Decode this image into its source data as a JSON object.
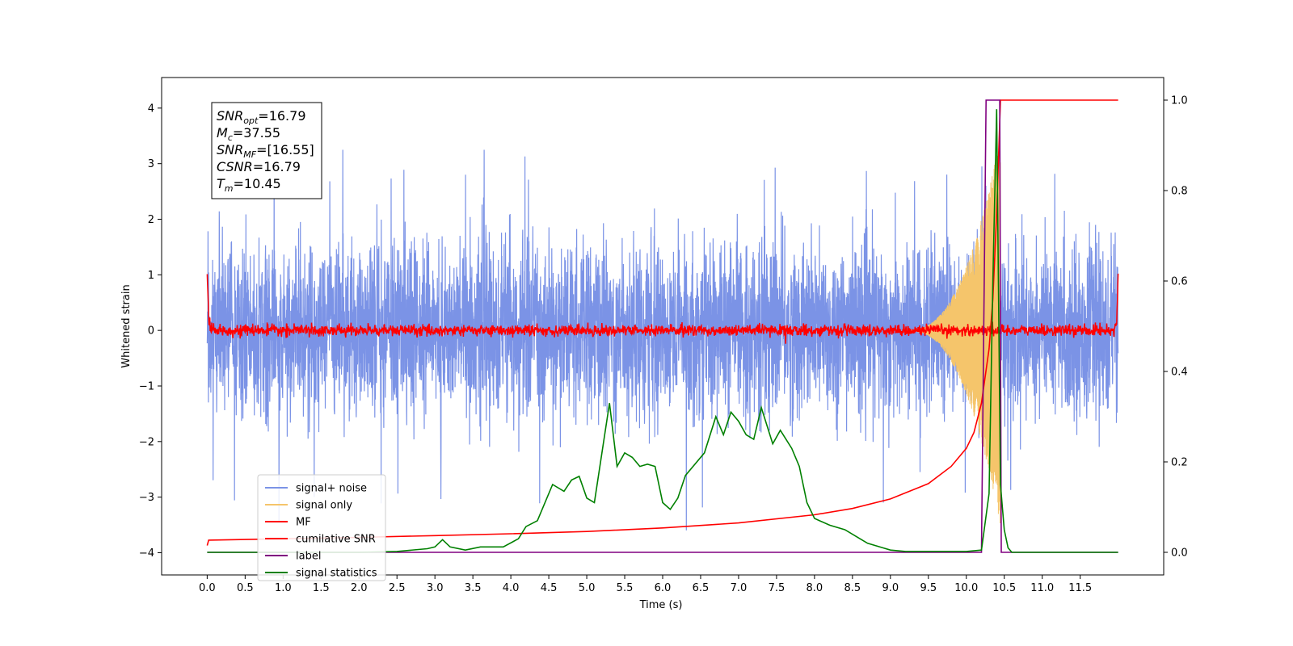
{
  "chart_data": {
    "type": "line",
    "xlabel": "Time (s)",
    "ylabel": "Whitened strain",
    "xlim": [
      -0.6,
      12.6
    ],
    "ylim": [
      -4.4,
      4.55
    ],
    "y2lim": [
      -0.05,
      1.05
    ],
    "x_ticks": [
      "0.0",
      "0.5",
      "1.0",
      "1.5",
      "2.0",
      "2.5",
      "3.0",
      "3.5",
      "4.0",
      "4.5",
      "5.0",
      "5.5",
      "6.0",
      "6.5",
      "7.0",
      "7.5",
      "8.0",
      "8.5",
      "9.0",
      "9.5",
      "10.0",
      "10.5",
      "11.0",
      "11.5"
    ],
    "y_ticks": [
      "−4",
      "−3",
      "−2",
      "−1",
      "0",
      "1",
      "2",
      "3",
      "4"
    ],
    "y2_ticks": [
      "0.0",
      "0.2",
      "0.4",
      "0.6",
      "0.8",
      "1.0"
    ],
    "annotation": {
      "lines": [
        {
          "base": "SNR",
          "sub": "opt",
          "rest": "=16.79"
        },
        {
          "base": "M",
          "sub": "c",
          "rest": "=37.55"
        },
        {
          "base": "SNR",
          "sub": "MF",
          "rest": "=[16.55]"
        },
        {
          "base": "CSNR",
          "sub": "",
          "rest": "=16.79"
        },
        {
          "base": "T",
          "sub": "m",
          "rest": "=10.45"
        }
      ]
    },
    "legend": {
      "position": "lower-left",
      "entries": [
        {
          "label": "signal+ noise",
          "color": "#7b93e6"
        },
        {
          "label": "signal only",
          "color": "#f5c56b"
        },
        {
          "label": "MF",
          "color": "#ff0000"
        },
        {
          "label": "cumilative SNR",
          "color": "#ff0000"
        },
        {
          "label": "label",
          "color": "#800080"
        },
        {
          "label": "signal statistics",
          "color": "#008000"
        }
      ]
    },
    "series": [
      {
        "name": "signal+ noise",
        "axis": "left",
        "kind": "noise",
        "x_range": [
          0.0,
          12.0
        ],
        "std": 0.75,
        "min": -4.0,
        "max": 3.25,
        "color": "#7b93e6"
      },
      {
        "name": "signal only",
        "axis": "left",
        "kind": "chirp",
        "x_range": [
          9.2,
          10.45
        ],
        "peak_amplitude": 3.5,
        "color": "#f5c56b"
      },
      {
        "name": "MF",
        "axis": "left",
        "kind": "mf",
        "x": [
          0.0,
          0.02,
          0.05,
          11.95,
          11.98,
          12.0
        ],
        "y": [
          1.0,
          0.2,
          0.0,
          0.0,
          0.2,
          1.0
        ],
        "noise_std": 0.05,
        "color": "#ff0000"
      },
      {
        "name": "cumilative SNR",
        "axis": "right",
        "x": [
          0.0,
          0.02,
          1.0,
          2.0,
          3.0,
          4.0,
          5.0,
          6.0,
          7.0,
          8.0,
          8.5,
          9.0,
          9.5,
          9.8,
          10.0,
          10.1,
          10.2,
          10.3,
          10.35,
          10.4,
          10.45,
          12.0
        ],
        "y": [
          0.015,
          0.027,
          0.03,
          0.033,
          0.037,
          0.041,
          0.046,
          0.054,
          0.065,
          0.083,
          0.097,
          0.118,
          0.152,
          0.19,
          0.23,
          0.265,
          0.33,
          0.45,
          0.56,
          0.75,
          1.0,
          1.0
        ],
        "color": "#ff0000"
      },
      {
        "name": "label",
        "axis": "right",
        "x": [
          0.0,
          10.2,
          10.26,
          10.44,
          10.46,
          12.0
        ],
        "y": [
          0.0,
          0.0,
          1.0,
          1.0,
          0.0,
          0.0
        ],
        "color": "#800080"
      },
      {
        "name": "signal statistics",
        "axis": "right",
        "x": [
          0.0,
          1.0,
          2.0,
          2.5,
          2.9,
          3.0,
          3.1,
          3.2,
          3.4,
          3.6,
          3.9,
          4.1,
          4.2,
          4.35,
          4.55,
          4.7,
          4.8,
          4.9,
          5.0,
          5.1,
          5.3,
          5.4,
          5.5,
          5.6,
          5.7,
          5.8,
          5.9,
          6.0,
          6.1,
          6.2,
          6.3,
          6.4,
          6.55,
          6.7,
          6.8,
          6.9,
          7.0,
          7.1,
          7.2,
          7.3,
          7.45,
          7.55,
          7.7,
          7.8,
          7.9,
          8.0,
          8.2,
          8.4,
          8.6,
          8.7,
          8.9,
          9.0,
          9.2,
          10.0,
          10.2,
          10.3,
          10.35,
          10.4,
          10.45,
          10.5,
          10.55,
          10.6,
          11.0,
          11.5,
          12.0
        ],
        "y": [
          0.0,
          0.0,
          0.0,
          0.002,
          0.008,
          0.012,
          0.028,
          0.012,
          0.005,
          0.012,
          0.012,
          0.03,
          0.057,
          0.07,
          0.15,
          0.135,
          0.16,
          0.168,
          0.12,
          0.11,
          0.33,
          0.19,
          0.22,
          0.21,
          0.19,
          0.195,
          0.19,
          0.11,
          0.095,
          0.12,
          0.17,
          0.19,
          0.22,
          0.3,
          0.26,
          0.31,
          0.29,
          0.26,
          0.25,
          0.32,
          0.24,
          0.27,
          0.23,
          0.19,
          0.11,
          0.075,
          0.06,
          0.05,
          0.03,
          0.02,
          0.01,
          0.005,
          0.002,
          0.002,
          0.005,
          0.13,
          0.6,
          0.98,
          0.15,
          0.05,
          0.01,
          0.0,
          0.0,
          0.0,
          0.0
        ],
        "color": "#008000"
      }
    ]
  }
}
